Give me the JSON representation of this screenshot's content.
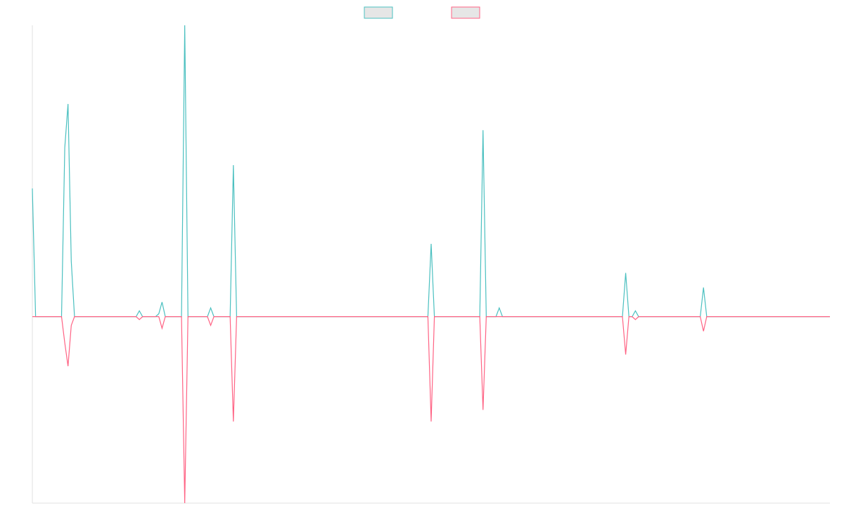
{
  "chart_data": {
    "type": "line",
    "x": [
      0,
      1,
      9,
      10,
      11,
      12,
      13,
      32,
      33,
      34,
      38,
      39,
      40,
      41,
      46,
      47,
      48,
      54,
      55,
      56,
      61,
      62,
      63,
      122,
      123,
      124,
      138,
      139,
      140,
      143,
      144,
      145,
      182,
      183,
      184,
      185,
      186,
      187,
      206,
      207,
      208,
      246
    ],
    "xlim": [
      0,
      246
    ],
    "ylim": [
      -64,
      100
    ],
    "series": [
      {
        "color": "#4bc0c0",
        "values": [
          44,
          0,
          0,
          58,
          73,
          19,
          0,
          0,
          2,
          0,
          0,
          1,
          5,
          0,
          0,
          100,
          0,
          0,
          3,
          0,
          0,
          52,
          0,
          0,
          25,
          0,
          0,
          64,
          0,
          0,
          3,
          0,
          0,
          15,
          0,
          0,
          2,
          0,
          0,
          10,
          0,
          0
        ]
      },
      {
        "color": "#ff6384",
        "values": [
          0,
          0,
          0,
          -9,
          -17,
          -3,
          0,
          0,
          -1,
          0,
          0,
          0,
          -4,
          0,
          0,
          -64,
          0,
          0,
          -3,
          0,
          0,
          -36,
          0,
          0,
          -36,
          0,
          0,
          -32,
          0,
          0,
          0,
          0,
          0,
          -13,
          0,
          0,
          -1,
          0,
          0,
          -5,
          0,
          0
        ]
      }
    ]
  }
}
